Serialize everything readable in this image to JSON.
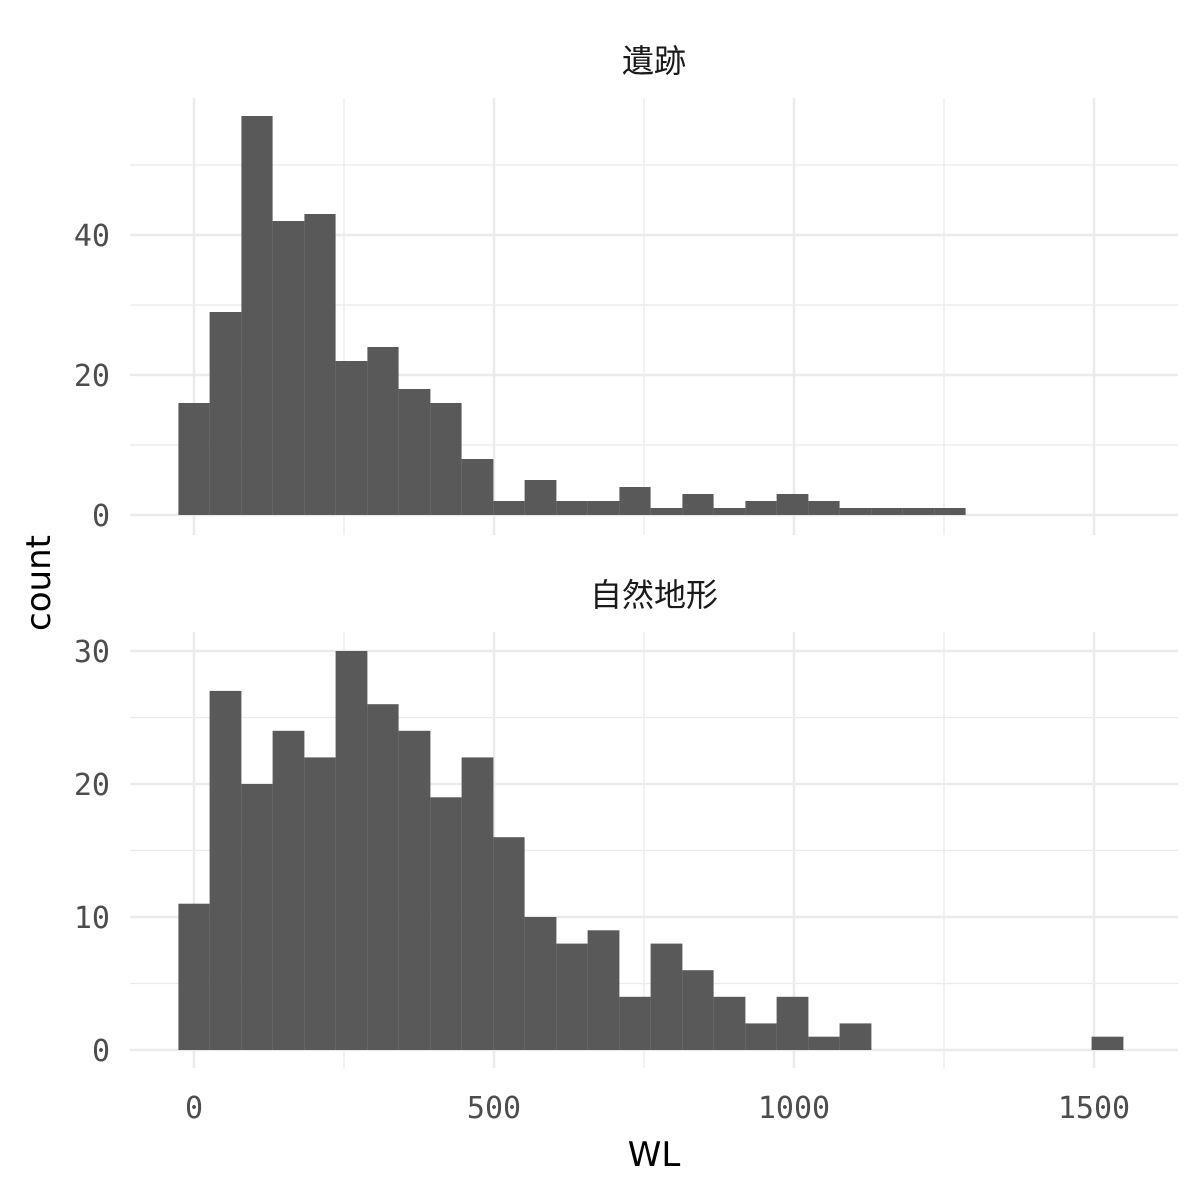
{
  "chart_data": {
    "type": "bar",
    "subtype": "faceted-histogram",
    "xlabel": "WL",
    "ylabel": "count",
    "xlim": [
      -50,
      1600
    ],
    "x_ticks": [
      0,
      500,
      1000,
      1500
    ],
    "x_tick_labels": [
      "0",
      "500",
      "1000",
      "1500"
    ],
    "bin_width": 52.5,
    "bar_color": "#595959",
    "grid": true,
    "legend": "none",
    "facets": [
      {
        "title": "遺跡",
        "ylim": [
          0,
          60
        ],
        "y_ticks": [
          0,
          20,
          40
        ],
        "y_tick_labels": [
          "0",
          "20",
          "40"
        ],
        "bins": [
          {
            "x0": -26,
            "x1": 26,
            "count": 16
          },
          {
            "x0": 26,
            "x1": 79,
            "count": 29
          },
          {
            "x0": 79,
            "x1": 131,
            "count": 57
          },
          {
            "x0": 131,
            "x1": 184,
            "count": 42
          },
          {
            "x0": 184,
            "x1": 236,
            "count": 43
          },
          {
            "x0": 236,
            "x1": 289,
            "count": 22
          },
          {
            "x0": 289,
            "x1": 341,
            "count": 24
          },
          {
            "x0": 341,
            "x1": 394,
            "count": 18
          },
          {
            "x0": 394,
            "x1": 446,
            "count": 16
          },
          {
            "x0": 446,
            "x1": 499,
            "count": 8
          },
          {
            "x0": 499,
            "x1": 551,
            "count": 2
          },
          {
            "x0": 551,
            "x1": 604,
            "count": 5
          },
          {
            "x0": 604,
            "x1": 656,
            "count": 2
          },
          {
            "x0": 656,
            "x1": 709,
            "count": 2
          },
          {
            "x0": 709,
            "x1": 761,
            "count": 4
          },
          {
            "x0": 761,
            "x1": 814,
            "count": 1
          },
          {
            "x0": 814,
            "x1": 866,
            "count": 3
          },
          {
            "x0": 866,
            "x1": 919,
            "count": 1
          },
          {
            "x0": 919,
            "x1": 971,
            "count": 2
          },
          {
            "x0": 971,
            "x1": 1024,
            "count": 3
          },
          {
            "x0": 1024,
            "x1": 1076,
            "count": 2
          },
          {
            "x0": 1076,
            "x1": 1129,
            "count": 1
          },
          {
            "x0": 1129,
            "x1": 1181,
            "count": 1
          },
          {
            "x0": 1181,
            "x1": 1234,
            "count": 1
          },
          {
            "x0": 1234,
            "x1": 1286,
            "count": 1
          }
        ]
      },
      {
        "title": "自然地形",
        "ylim": [
          0,
          30
        ],
        "y_ticks": [
          0,
          10,
          20,
          30
        ],
        "y_tick_labels": [
          "0",
          "10",
          "20",
          "30"
        ],
        "bins": [
          {
            "x0": -26,
            "x1": 26,
            "count": 11
          },
          {
            "x0": 26,
            "x1": 79,
            "count": 27
          },
          {
            "x0": 79,
            "x1": 131,
            "count": 20
          },
          {
            "x0": 131,
            "x1": 184,
            "count": 24
          },
          {
            "x0": 184,
            "x1": 236,
            "count": 22
          },
          {
            "x0": 236,
            "x1": 289,
            "count": 30
          },
          {
            "x0": 289,
            "x1": 341,
            "count": 26
          },
          {
            "x0": 341,
            "x1": 394,
            "count": 24
          },
          {
            "x0": 394,
            "x1": 446,
            "count": 19
          },
          {
            "x0": 446,
            "x1": 499,
            "count": 22
          },
          {
            "x0": 499,
            "x1": 551,
            "count": 16
          },
          {
            "x0": 551,
            "x1": 604,
            "count": 10
          },
          {
            "x0": 604,
            "x1": 656,
            "count": 8
          },
          {
            "x0": 656,
            "x1": 709,
            "count": 9
          },
          {
            "x0": 709,
            "x1": 761,
            "count": 4
          },
          {
            "x0": 761,
            "x1": 814,
            "count": 8
          },
          {
            "x0": 814,
            "x1": 866,
            "count": 6
          },
          {
            "x0": 866,
            "x1": 919,
            "count": 4
          },
          {
            "x0": 919,
            "x1": 971,
            "count": 2
          },
          {
            "x0": 971,
            "x1": 1024,
            "count": 4
          },
          {
            "x0": 1024,
            "x1": 1076,
            "count": 1
          },
          {
            "x0": 1076,
            "x1": 1129,
            "count": 2
          },
          {
            "x0": 1496,
            "x1": 1549,
            "count": 1
          }
        ]
      }
    ]
  }
}
